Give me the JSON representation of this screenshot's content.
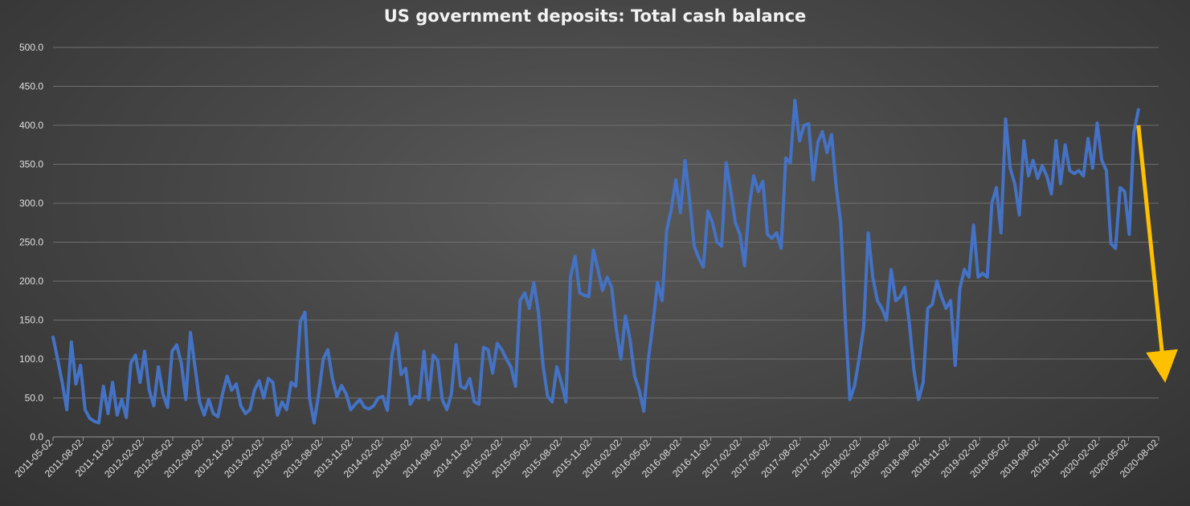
{
  "chart_data": {
    "type": "line",
    "title": "US government deposits: Total cash balance",
    "xlabel": "",
    "ylabel": "",
    "ylim": [
      0,
      500
    ],
    "y_ticks": [
      "0.0",
      "50.0",
      "100.0",
      "150.0",
      "200.0",
      "250.0",
      "300.0",
      "350.0",
      "400.0",
      "450.0",
      "500.0"
    ],
    "x_ticks": [
      "2011-05-02",
      "2011-08-02",
      "2011-11-02",
      "2012-02-02",
      "2012-05-02",
      "2012-08-02",
      "2012-11-02",
      "2013-02-02",
      "2013-05-02",
      "2013-08-02",
      "2013-11-02",
      "2014-02-02",
      "2014-05-02",
      "2014-08-02",
      "2014-11-02",
      "2015-02-02",
      "2015-05-02",
      "2015-08-02",
      "2015-11-02",
      "2016-02-02",
      "2016-05-02",
      "2016-08-02",
      "2016-11-02",
      "2017-02-02",
      "2017-05-02",
      "2017-08-02",
      "2017-11-02",
      "2018-02-02",
      "2018-05-02",
      "2018-08-02",
      "2018-11-02",
      "2019-02-02",
      "2019-05-02",
      "2019-08-02",
      "2019-11-02",
      "2020-02-02",
      "2020-05-02",
      "2020-08-02"
    ],
    "grid": true,
    "legend": "none",
    "series": [
      {
        "color": "#4472c4",
        "points": [
          [
            "2011-05-02",
            128
          ],
          [
            "2011-05-16",
            100
          ],
          [
            "2011-05-30",
            70
          ],
          [
            "2011-06-13",
            35
          ],
          [
            "2011-06-27",
            122
          ],
          [
            "2011-07-11",
            68
          ],
          [
            "2011-07-25",
            92
          ],
          [
            "2011-08-08",
            35
          ],
          [
            "2011-08-22",
            24
          ],
          [
            "2011-09-05",
            20
          ],
          [
            "2011-09-19",
            18
          ],
          [
            "2011-10-03",
            65
          ],
          [
            "2011-10-17",
            30
          ],
          [
            "2011-10-31",
            70
          ],
          [
            "2011-11-14",
            28
          ],
          [
            "2011-11-28",
            48
          ],
          [
            "2011-12-12",
            25
          ],
          [
            "2011-12-26",
            95
          ],
          [
            "2012-01-09",
            105
          ],
          [
            "2012-01-23",
            70
          ],
          [
            "2012-02-06",
            110
          ],
          [
            "2012-02-20",
            60
          ],
          [
            "2012-03-05",
            40
          ],
          [
            "2012-03-19",
            90
          ],
          [
            "2012-04-02",
            55
          ],
          [
            "2012-04-16",
            38
          ],
          [
            "2012-04-30",
            110
          ],
          [
            "2012-05-14",
            118
          ],
          [
            "2012-05-28",
            95
          ],
          [
            "2012-06-11",
            48
          ],
          [
            "2012-06-25",
            134
          ],
          [
            "2012-07-09",
            90
          ],
          [
            "2012-07-23",
            45
          ],
          [
            "2012-08-06",
            28
          ],
          [
            "2012-08-20",
            48
          ],
          [
            "2012-09-03",
            30
          ],
          [
            "2012-09-17",
            26
          ],
          [
            "2012-10-01",
            55
          ],
          [
            "2012-10-15",
            78
          ],
          [
            "2012-10-29",
            60
          ],
          [
            "2012-11-12",
            68
          ],
          [
            "2012-11-26",
            40
          ],
          [
            "2012-12-10",
            30
          ],
          [
            "2012-12-24",
            35
          ],
          [
            "2013-01-07",
            60
          ],
          [
            "2013-01-21",
            72
          ],
          [
            "2013-02-04",
            50
          ],
          [
            "2013-02-18",
            75
          ],
          [
            "2013-03-04",
            70
          ],
          [
            "2013-03-18",
            28
          ],
          [
            "2013-04-01",
            45
          ],
          [
            "2013-04-15",
            35
          ],
          [
            "2013-04-29",
            70
          ],
          [
            "2013-05-13",
            65
          ],
          [
            "2013-05-27",
            148
          ],
          [
            "2013-06-10",
            160
          ],
          [
            "2013-06-24",
            50
          ],
          [
            "2013-07-08",
            18
          ],
          [
            "2013-07-22",
            55
          ],
          [
            "2013-08-05",
            100
          ],
          [
            "2013-08-19",
            112
          ],
          [
            "2013-09-02",
            75
          ],
          [
            "2013-09-16",
            52
          ],
          [
            "2013-09-30",
            66
          ],
          [
            "2013-10-14",
            55
          ],
          [
            "2013-10-28",
            35
          ],
          [
            "2013-11-11",
            42
          ],
          [
            "2013-11-25",
            48
          ],
          [
            "2013-12-09",
            38
          ],
          [
            "2013-12-23",
            36
          ],
          [
            "2014-01-06",
            40
          ],
          [
            "2014-01-20",
            50
          ],
          [
            "2014-02-03",
            52
          ],
          [
            "2014-02-17",
            34
          ],
          [
            "2014-03-03",
            105
          ],
          [
            "2014-03-17",
            133
          ],
          [
            "2014-03-31",
            80
          ],
          [
            "2014-04-14",
            88
          ],
          [
            "2014-04-28",
            42
          ],
          [
            "2014-05-12",
            52
          ],
          [
            "2014-05-26",
            50
          ],
          [
            "2014-06-09",
            110
          ],
          [
            "2014-06-23",
            48
          ],
          [
            "2014-07-07",
            105
          ],
          [
            "2014-07-21",
            98
          ],
          [
            "2014-08-04",
            48
          ],
          [
            "2014-08-18",
            35
          ],
          [
            "2014-09-01",
            55
          ],
          [
            "2014-09-15",
            118
          ],
          [
            "2014-09-29",
            65
          ],
          [
            "2014-10-13",
            62
          ],
          [
            "2014-10-27",
            75
          ],
          [
            "2014-11-10",
            45
          ],
          [
            "2014-11-24",
            42
          ],
          [
            "2014-12-08",
            115
          ],
          [
            "2014-12-22",
            112
          ],
          [
            "2015-01-05",
            82
          ],
          [
            "2015-01-19",
            120
          ],
          [
            "2015-02-02",
            112
          ],
          [
            "2015-02-16",
            100
          ],
          [
            "2015-03-02",
            90
          ],
          [
            "2015-03-16",
            65
          ],
          [
            "2015-03-30",
            175
          ],
          [
            "2015-04-13",
            185
          ],
          [
            "2015-04-27",
            165
          ],
          [
            "2015-05-11",
            198
          ],
          [
            "2015-05-25",
            160
          ],
          [
            "2015-06-08",
            92
          ],
          [
            "2015-06-22",
            52
          ],
          [
            "2015-07-06",
            45
          ],
          [
            "2015-07-20",
            90
          ],
          [
            "2015-08-03",
            70
          ],
          [
            "2015-08-17",
            45
          ],
          [
            "2015-08-31",
            205
          ],
          [
            "2015-09-14",
            232
          ],
          [
            "2015-09-28",
            185
          ],
          [
            "2015-10-12",
            182
          ],
          [
            "2015-10-26",
            180
          ],
          [
            "2015-11-09",
            240
          ],
          [
            "2015-11-23",
            215
          ],
          [
            "2015-12-07",
            188
          ],
          [
            "2015-12-21",
            205
          ],
          [
            "2016-01-04",
            192
          ],
          [
            "2016-01-18",
            138
          ],
          [
            "2016-02-01",
            100
          ],
          [
            "2016-02-15",
            155
          ],
          [
            "2016-02-29",
            125
          ],
          [
            "2016-03-14",
            78
          ],
          [
            "2016-03-28",
            60
          ],
          [
            "2016-04-11",
            33
          ],
          [
            "2016-04-25",
            100
          ],
          [
            "2016-05-09",
            145
          ],
          [
            "2016-05-23",
            198
          ],
          [
            "2016-06-06",
            175
          ],
          [
            "2016-06-20",
            265
          ],
          [
            "2016-07-04",
            292
          ],
          [
            "2016-07-18",
            330
          ],
          [
            "2016-08-01",
            288
          ],
          [
            "2016-08-15",
            355
          ],
          [
            "2016-08-29",
            305
          ],
          [
            "2016-09-12",
            245
          ],
          [
            "2016-09-26",
            230
          ],
          [
            "2016-10-10",
            218
          ],
          [
            "2016-10-24",
            290
          ],
          [
            "2016-11-07",
            275
          ],
          [
            "2016-11-21",
            250
          ],
          [
            "2016-12-05",
            245
          ],
          [
            "2016-12-19",
            352
          ],
          [
            "2017-01-02",
            315
          ],
          [
            "2017-01-16",
            275
          ],
          [
            "2017-01-30",
            260
          ],
          [
            "2017-02-13",
            220
          ],
          [
            "2017-02-27",
            295
          ],
          [
            "2017-03-13",
            335
          ],
          [
            "2017-03-27",
            315
          ],
          [
            "2017-04-10",
            328
          ],
          [
            "2017-04-24",
            260
          ],
          [
            "2017-05-08",
            255
          ],
          [
            "2017-05-22",
            262
          ],
          [
            "2017-06-05",
            242
          ],
          [
            "2017-06-19",
            358
          ],
          [
            "2017-07-03",
            352
          ],
          [
            "2017-07-17",
            432
          ],
          [
            "2017-07-31",
            380
          ],
          [
            "2017-08-14",
            400
          ],
          [
            "2017-08-28",
            402
          ],
          [
            "2017-09-11",
            330
          ],
          [
            "2017-09-25",
            378
          ],
          [
            "2017-10-09",
            392
          ],
          [
            "2017-10-23",
            365
          ],
          [
            "2017-11-06",
            388
          ],
          [
            "2017-11-20",
            322
          ],
          [
            "2017-12-04",
            275
          ],
          [
            "2017-12-18",
            150
          ],
          [
            "2018-01-01",
            48
          ],
          [
            "2018-01-15",
            65
          ],
          [
            "2018-01-29",
            100
          ],
          [
            "2018-02-12",
            140
          ],
          [
            "2018-02-26",
            262
          ],
          [
            "2018-03-12",
            205
          ],
          [
            "2018-03-26",
            175
          ],
          [
            "2018-04-09",
            165
          ],
          [
            "2018-04-23",
            150
          ],
          [
            "2018-05-07",
            215
          ],
          [
            "2018-05-21",
            175
          ],
          [
            "2018-06-04",
            180
          ],
          [
            "2018-06-18",
            192
          ],
          [
            "2018-07-02",
            145
          ],
          [
            "2018-07-16",
            85
          ],
          [
            "2018-07-30",
            48
          ],
          [
            "2018-08-13",
            70
          ],
          [
            "2018-08-27",
            165
          ],
          [
            "2018-09-10",
            170
          ],
          [
            "2018-09-24",
            200
          ],
          [
            "2018-10-08",
            180
          ],
          [
            "2018-10-22",
            165
          ],
          [
            "2018-11-05",
            175
          ],
          [
            "2018-11-19",
            92
          ],
          [
            "2018-12-03",
            190
          ],
          [
            "2018-12-17",
            215
          ],
          [
            "2018-12-31",
            205
          ],
          [
            "2019-01-14",
            272
          ],
          [
            "2019-01-28",
            205
          ],
          [
            "2019-02-11",
            210
          ],
          [
            "2019-02-25",
            205
          ],
          [
            "2019-03-11",
            300
          ],
          [
            "2019-03-25",
            320
          ],
          [
            "2019-04-08",
            262
          ],
          [
            "2019-04-22",
            408
          ],
          [
            "2019-05-06",
            345
          ],
          [
            "2019-05-20",
            325
          ],
          [
            "2019-06-03",
            285
          ],
          [
            "2019-06-17",
            380
          ],
          [
            "2019-07-01",
            335
          ],
          [
            "2019-07-15",
            355
          ],
          [
            "2019-07-29",
            332
          ],
          [
            "2019-08-12",
            348
          ],
          [
            "2019-08-26",
            335
          ],
          [
            "2019-09-09",
            312
          ],
          [
            "2019-09-23",
            380
          ],
          [
            "2019-10-07",
            325
          ],
          [
            "2019-10-21",
            375
          ],
          [
            "2019-11-04",
            342
          ],
          [
            "2019-11-18",
            338
          ],
          [
            "2019-12-02",
            342
          ],
          [
            "2019-12-16",
            335
          ],
          [
            "2019-12-30",
            383
          ],
          [
            "2020-01-13",
            345
          ],
          [
            "2020-01-27",
            403
          ],
          [
            "2020-02-10",
            355
          ],
          [
            "2020-02-24",
            342
          ],
          [
            "2020-03-09",
            248
          ],
          [
            "2020-03-23",
            242
          ],
          [
            "2020-04-06",
            320
          ],
          [
            "2020-04-20",
            315
          ],
          [
            "2020-05-04",
            260
          ],
          [
            "2020-05-18",
            390
          ],
          [
            "2020-06-01",
            420
          ]
        ]
      }
    ],
    "annotation": {
      "shape": "arrow",
      "color": "#ffc000",
      "from": [
        "2020-06-01",
        400
      ],
      "to": [
        "2020-08-17",
        90
      ]
    }
  }
}
